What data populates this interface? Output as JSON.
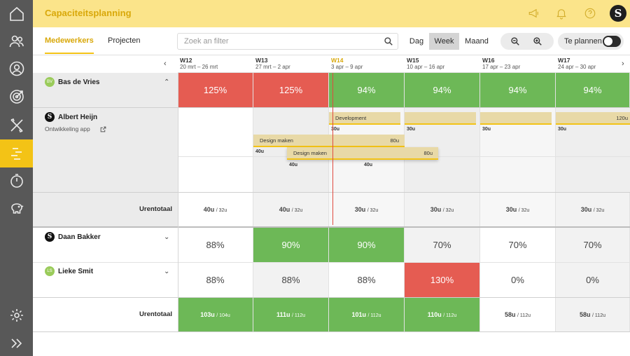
{
  "header": {
    "title": "Capaciteitsplanning"
  },
  "tabs": {
    "employees": "Medewerkers",
    "projects": "Projecten"
  },
  "search": {
    "placeholder": "Zoek an filter"
  },
  "view": {
    "day": "Dag",
    "week": "Week",
    "month": "Maand",
    "selected": "Week"
  },
  "toggle": {
    "label": "Te plannen",
    "on": false
  },
  "weeks": [
    {
      "code": "W12",
      "range": "20 mrt – 26 mrt"
    },
    {
      "code": "W13",
      "range": "27 mrt – 2 apr"
    },
    {
      "code": "W14",
      "range": "3 apr – 9 apr"
    },
    {
      "code": "W15",
      "range": "10 apr – 16 apr"
    },
    {
      "code": "W16",
      "range": "17 apr – 23 apr"
    },
    {
      "code": "W17",
      "range": "24 apr – 30 apr"
    }
  ],
  "people": {
    "bas": {
      "name": "Bas de Vries",
      "cells": [
        "125%",
        "125%",
        "94%",
        "94%",
        "94%",
        "94%"
      ]
    },
    "client": {
      "name": "Albert Heijn",
      "project": "Ontwikkeling app"
    },
    "daan": {
      "name": "Daan Bakker",
      "cells": [
        "88%",
        "90%",
        "90%",
        "70%",
        "70%",
        "70%"
      ]
    },
    "lieke": {
      "name": "Lieke Smit",
      "cells": [
        "88%",
        "88%",
        "88%",
        "130%",
        "0%",
        "0%"
      ]
    }
  },
  "tasks": {
    "development": {
      "label": "Development",
      "hours": "120u",
      "week_hours": [
        "30u",
        "30u",
        "30u",
        "30u"
      ]
    },
    "design1": {
      "label": "Design maken",
      "hours": "80u",
      "week_hours": [
        "40u",
        "40u"
      ]
    },
    "design2": {
      "label": "Design maken",
      "hours": "80u",
      "week_hours": [
        "40u",
        "40u"
      ]
    }
  },
  "totals_label": "Urentotaal",
  "totals1": [
    {
      "value": "40u",
      "cap": "/ 32u"
    },
    {
      "value": "40u",
      "cap": "/ 32u"
    },
    {
      "value": "30u",
      "cap": "/ 32u"
    },
    {
      "value": "30u",
      "cap": "/ 32u"
    },
    {
      "value": "30u",
      "cap": "/ 32u"
    },
    {
      "value": "30u",
      "cap": "/ 32u"
    }
  ],
  "totals2": [
    {
      "value": "103u",
      "cap": "/ 104u"
    },
    {
      "value": "111u",
      "cap": "/ 112u"
    },
    {
      "value": "101u",
      "cap": "/ 112u"
    },
    {
      "value": "110u",
      "cap": "/ 112u"
    },
    {
      "value": "58u",
      "cap": "/ 112u"
    },
    {
      "value": "58u",
      "cap": "/ 112u"
    }
  ],
  "colors": {
    "accent": "#f3c316",
    "over": "#e55c52",
    "ok": "#6db857",
    "sidebar": "#585858"
  },
  "icons": {
    "sidebar": [
      "home-icon",
      "users-icon",
      "user-icon",
      "target-icon",
      "tools-icon",
      "planning-icon",
      "timer-icon",
      "piggybank-icon",
      "settings-icon",
      "expand-icon"
    ],
    "header": [
      "megaphone-icon",
      "bell-icon",
      "help-icon"
    ]
  }
}
